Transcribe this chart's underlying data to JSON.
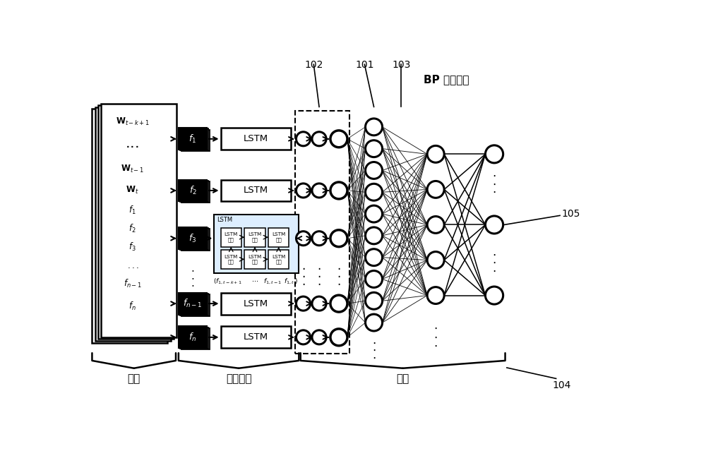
{
  "bg_color": "#ffffff",
  "section_labels": [
    "输入",
    "历史学习",
    "决策"
  ],
  "bp_label": "BP 神经网络",
  "lstm_unit_label": "LSTM\n单元",
  "ref_101": "101",
  "ref_102": "102",
  "ref_103": "103",
  "ref_104": "104",
  "ref_105": "105"
}
